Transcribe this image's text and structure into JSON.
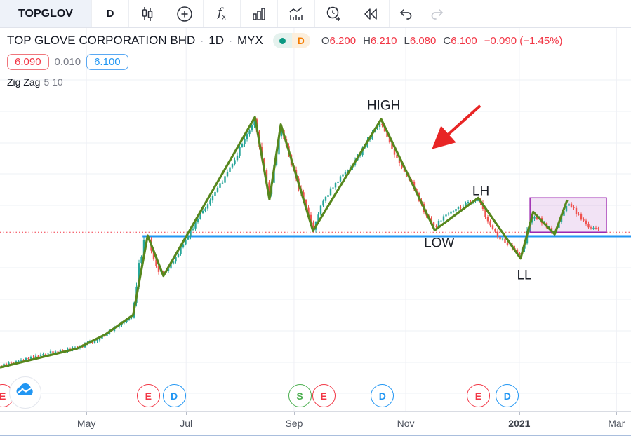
{
  "toolbar": {
    "symbol": "TOPGLOV",
    "interval": "D",
    "icon_names": [
      "candlestick-icon",
      "compare-plus-icon",
      "fx-indicators-icon",
      "bar-chart-icon",
      "wave-volume-icon",
      "alert-clock-icon",
      "replay-rewind-icon",
      "undo-icon",
      "redo-icon"
    ]
  },
  "legend": {
    "title": "TOP GLOVE CORPORATION BHD",
    "interval": "1D",
    "exchange": "MYX",
    "separator": "·",
    "status_letter": "D",
    "ohlc": {
      "o_label": "O",
      "o": "6.200",
      "h_label": "H",
      "h": "6.210",
      "l_label": "L",
      "l": "6.080",
      "c_label": "C",
      "c": "6.100",
      "change": "−0.090 (−1.45%)"
    }
  },
  "values_row": {
    "zigzag_value": "6.090",
    "delta": "0.010",
    "line_value": "6.100"
  },
  "indicator": {
    "name": "Zig Zag",
    "params": "5 10"
  },
  "colors": {
    "up": "#26a69a",
    "down": "#ef5350",
    "zigzag": "#57871d",
    "support_line": "#2196f3",
    "dotted_line": "#f23645",
    "rect_border": "#9c27b0",
    "rect_fill": "rgba(156,39,176,0.13)",
    "arrow": "#e82525",
    "grid": "#eef0f5",
    "marker_red": "#f23645",
    "marker_blue": "#2196f3",
    "marker_green": "#4caf50",
    "logo_blue": "#2196f3"
  },
  "chart_data": {
    "type": "candlestick",
    "symbol": "TOPGLOV",
    "timeframe": "1D",
    "x_ticks": [
      {
        "label": "May",
        "f": 0.137
      },
      {
        "label": "Jul",
        "f": 0.295
      },
      {
        "label": "Sep",
        "f": 0.466
      },
      {
        "label": "Nov",
        "f": 0.643
      },
      {
        "label": "2021",
        "f": 0.823,
        "year": true
      },
      {
        "label": "Mar",
        "f": 0.977
      }
    ],
    "ohlc_reading": {
      "open": 6.2,
      "high": 6.21,
      "low": 6.08,
      "close": 6.1,
      "change": -0.09,
      "change_pct": "-1.45%"
    },
    "zigzag_points": [
      [
        0.0,
        4.15
      ],
      [
        0.122,
        4.43
      ],
      [
        0.167,
        4.64
      ],
      [
        0.211,
        4.93
      ],
      [
        0.234,
        6.11
      ],
      [
        0.259,
        5.51
      ],
      [
        0.404,
        7.87
      ],
      [
        0.427,
        6.65
      ],
      [
        0.445,
        7.76
      ],
      [
        0.496,
        6.18
      ],
      [
        0.604,
        7.84
      ],
      [
        0.689,
        6.19
      ],
      [
        0.758,
        6.67
      ],
      [
        0.825,
        5.77
      ],
      [
        0.845,
        6.46
      ],
      [
        0.879,
        6.13
      ],
      [
        0.899,
        6.64
      ]
    ],
    "price_path": [
      [
        0.0,
        4.17
      ],
      [
        0.033,
        4.26
      ],
      [
        0.067,
        4.35
      ],
      [
        0.1,
        4.4
      ],
      [
        0.122,
        4.44
      ],
      [
        0.145,
        4.52
      ],
      [
        0.167,
        4.64
      ],
      [
        0.189,
        4.8
      ],
      [
        0.209,
        4.92
      ],
      [
        0.215,
        5.24
      ],
      [
        0.22,
        5.65
      ],
      [
        0.228,
        6.02
      ],
      [
        0.234,
        6.09
      ],
      [
        0.242,
        5.81
      ],
      [
        0.251,
        5.6
      ],
      [
        0.259,
        5.53
      ],
      [
        0.273,
        5.7
      ],
      [
        0.287,
        5.94
      ],
      [
        0.3,
        6.15
      ],
      [
        0.317,
        6.43
      ],
      [
        0.334,
        6.64
      ],
      [
        0.35,
        6.88
      ],
      [
        0.367,
        7.16
      ],
      [
        0.384,
        7.48
      ],
      [
        0.404,
        7.84
      ],
      [
        0.417,
        7.16
      ],
      [
        0.427,
        6.67
      ],
      [
        0.445,
        7.74
      ],
      [
        0.458,
        7.27
      ],
      [
        0.473,
        6.85
      ],
      [
        0.486,
        6.49
      ],
      [
        0.496,
        6.21
      ],
      [
        0.509,
        6.54
      ],
      [
        0.525,
        6.82
      ],
      [
        0.542,
        6.99
      ],
      [
        0.556,
        7.11
      ],
      [
        0.573,
        7.37
      ],
      [
        0.59,
        7.63
      ],
      [
        0.604,
        7.79
      ],
      [
        0.618,
        7.48
      ],
      [
        0.634,
        7.16
      ],
      [
        0.651,
        6.92
      ],
      [
        0.667,
        6.57
      ],
      [
        0.681,
        6.33
      ],
      [
        0.689,
        6.23
      ],
      [
        0.703,
        6.4
      ],
      [
        0.721,
        6.49
      ],
      [
        0.74,
        6.59
      ],
      [
        0.758,
        6.65
      ],
      [
        0.773,
        6.33
      ],
      [
        0.79,
        6.09
      ],
      [
        0.807,
        5.96
      ],
      [
        0.825,
        5.8
      ],
      [
        0.836,
        6.17
      ],
      [
        0.845,
        6.43
      ],
      [
        0.857,
        6.33
      ],
      [
        0.868,
        6.23
      ],
      [
        0.879,
        6.15
      ],
      [
        0.888,
        6.38
      ],
      [
        0.899,
        6.59
      ],
      [
        0.91,
        6.49
      ],
      [
        0.921,
        6.36
      ],
      [
        0.932,
        6.26
      ],
      [
        0.948,
        6.19
      ]
    ],
    "annotations": [
      {
        "text": "HIGH",
        "f": 0.608,
        "p": 7.98
      },
      {
        "text": "LOW",
        "f": 0.696,
        "p": 5.94
      },
      {
        "text": "LH",
        "f": 0.762,
        "p": 6.71
      },
      {
        "text": "LL",
        "f": 0.831,
        "p": 5.46
      }
    ],
    "arrow": {
      "f1": 0.761,
      "p1": 8.04,
      "f2": 0.691,
      "p2": 7.45
    },
    "highlight_rect": {
      "f1": 0.84,
      "f2": 0.961,
      "p_top": 6.67,
      "p_bottom": 6.16
    },
    "support_line": {
      "price": 6.1,
      "f_start": 0.226,
      "value_label": "6.100"
    },
    "dotted_price_line": {
      "price": 6.16
    }
  },
  "markers": [
    {
      "label": "E",
      "color": "red",
      "f": 0.004
    },
    {
      "label": "E",
      "color": "red",
      "f": 0.235
    },
    {
      "label": "D",
      "color": "blue",
      "f": 0.276
    },
    {
      "label": "S",
      "color": "green",
      "f": 0.475
    },
    {
      "label": "E",
      "color": "red",
      "f": 0.513
    },
    {
      "label": "D",
      "color": "blue",
      "f": 0.606
    },
    {
      "label": "E",
      "color": "red",
      "f": 0.758
    },
    {
      "label": "D",
      "color": "blue",
      "f": 0.804
    }
  ],
  "timeline": {
    "ticks_note": "see chart_data.x_ticks"
  }
}
